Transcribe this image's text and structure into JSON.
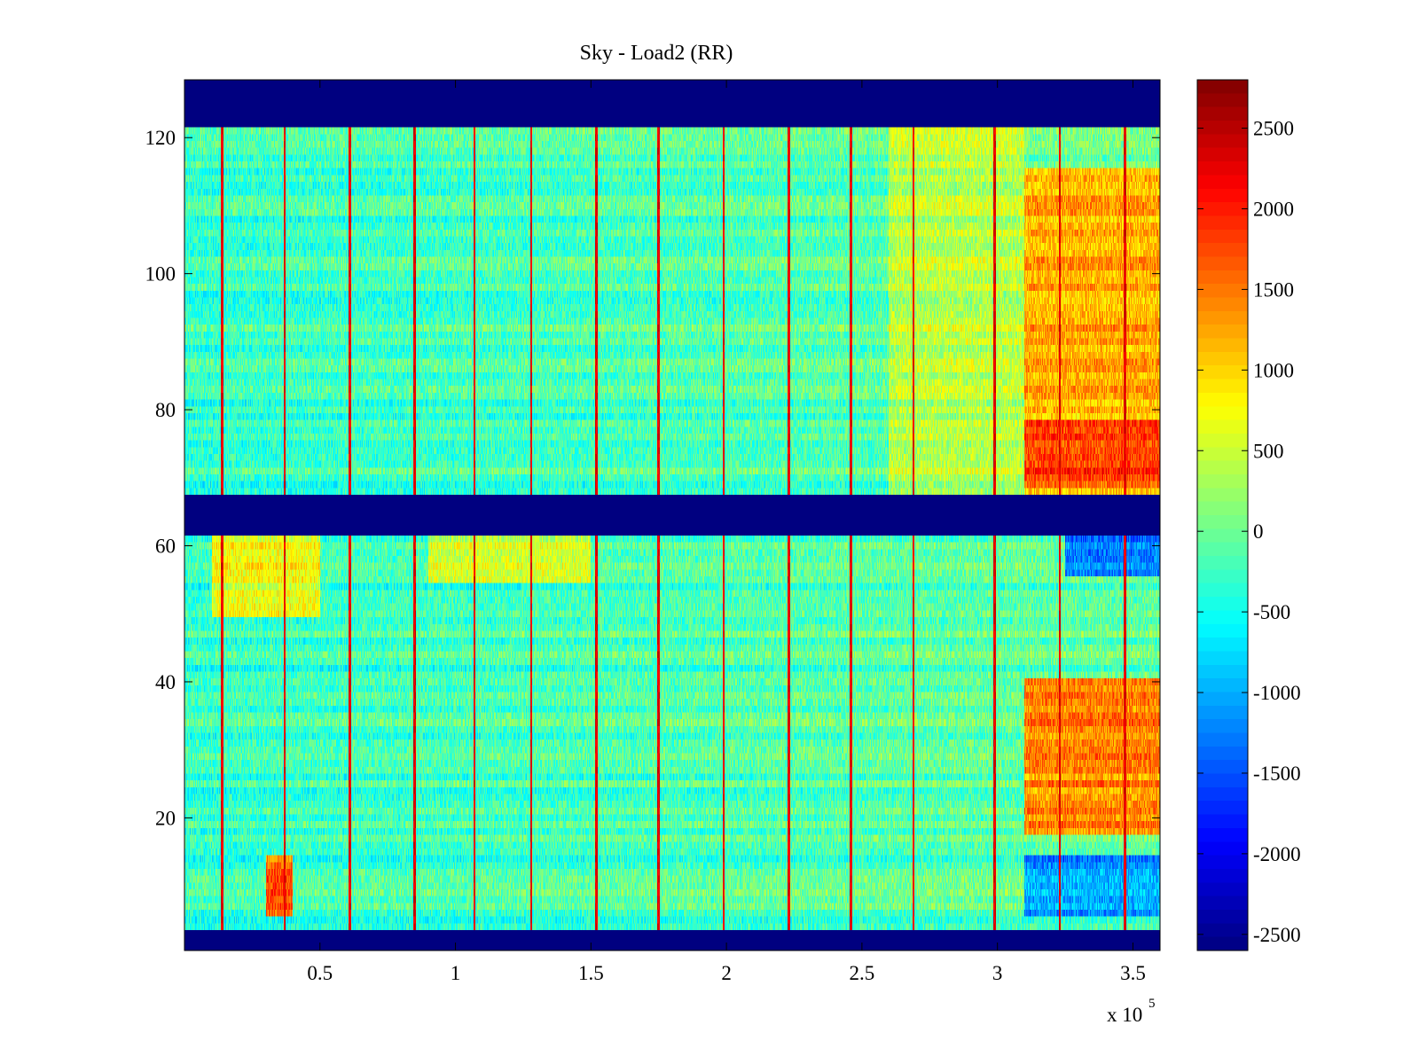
{
  "chart_data": {
    "type": "heatmap",
    "title": "Sky - Load2 (RR)",
    "xlabel": "",
    "ylabel": "",
    "x_exponent_label": "x 10",
    "x_exponent_power": "5",
    "xlim": [
      0,
      3.6
    ],
    "ylim": [
      0.5,
      128.5
    ],
    "x_ticks": [
      0.5,
      1,
      1.5,
      2,
      2.5,
      3,
      3.5
    ],
    "x_tick_labels": [
      "0.5",
      "1",
      "1.5",
      "2",
      "2.5",
      "3",
      "3.5"
    ],
    "y_ticks": [
      20,
      40,
      60,
      80,
      100,
      120
    ],
    "y_tick_labels": [
      "20",
      "40",
      "60",
      "80",
      "100",
      "120"
    ],
    "colormap": "jet",
    "clim": [
      -2600,
      2800
    ],
    "colorbar_ticks": [
      -2500,
      -2000,
      -1500,
      -1000,
      -500,
      0,
      500,
      1000,
      1500,
      2000,
      2500
    ],
    "colorbar_tick_labels": [
      "-2500",
      "-2000",
      "-1500",
      "-1000",
      "-500",
      "0",
      "500",
      "1000",
      "1500",
      "2000",
      "2500"
    ],
    "masked_channel_ranges": [
      [
        0.5,
        3.5
      ],
      [
        61.5,
        67.5
      ],
      [
        121.5,
        128.5
      ]
    ],
    "masked_value": -2600,
    "spike_columns_x": [
      0.14,
      0.37,
      0.61,
      0.85,
      1.07,
      1.28,
      1.52,
      1.75,
      1.99,
      2.23,
      2.46,
      2.69,
      2.99,
      3.23,
      3.47
    ],
    "spike_value": 2500,
    "background_value": -300,
    "regions": [
      {
        "x": [
          2.6,
          3.1
        ],
        "y": [
          68,
          121
        ],
        "value": 400
      },
      {
        "x": [
          3.1,
          3.6
        ],
        "y": [
          68,
          115
        ],
        "value": 1200
      },
      {
        "x": [
          3.1,
          3.6
        ],
        "y": [
          69,
          78
        ],
        "value": 1800
      },
      {
        "x": [
          3.1,
          3.6
        ],
        "y": [
          18,
          40
        ],
        "value": 1400
      },
      {
        "x": [
          3.1,
          3.6
        ],
        "y": [
          6,
          14
        ],
        "value": -1100
      },
      {
        "x": [
          3.25,
          3.6
        ],
        "y": [
          56,
          61
        ],
        "value": -1300
      },
      {
        "x": [
          0.1,
          0.5
        ],
        "y": [
          50,
          61
        ],
        "value": 700
      },
      {
        "x": [
          0.3,
          0.4
        ],
        "y": [
          6,
          14
        ],
        "value": 1600
      },
      {
        "x": [
          0.9,
          1.5
        ],
        "y": [
          55,
          61
        ],
        "value": 500
      }
    ]
  }
}
